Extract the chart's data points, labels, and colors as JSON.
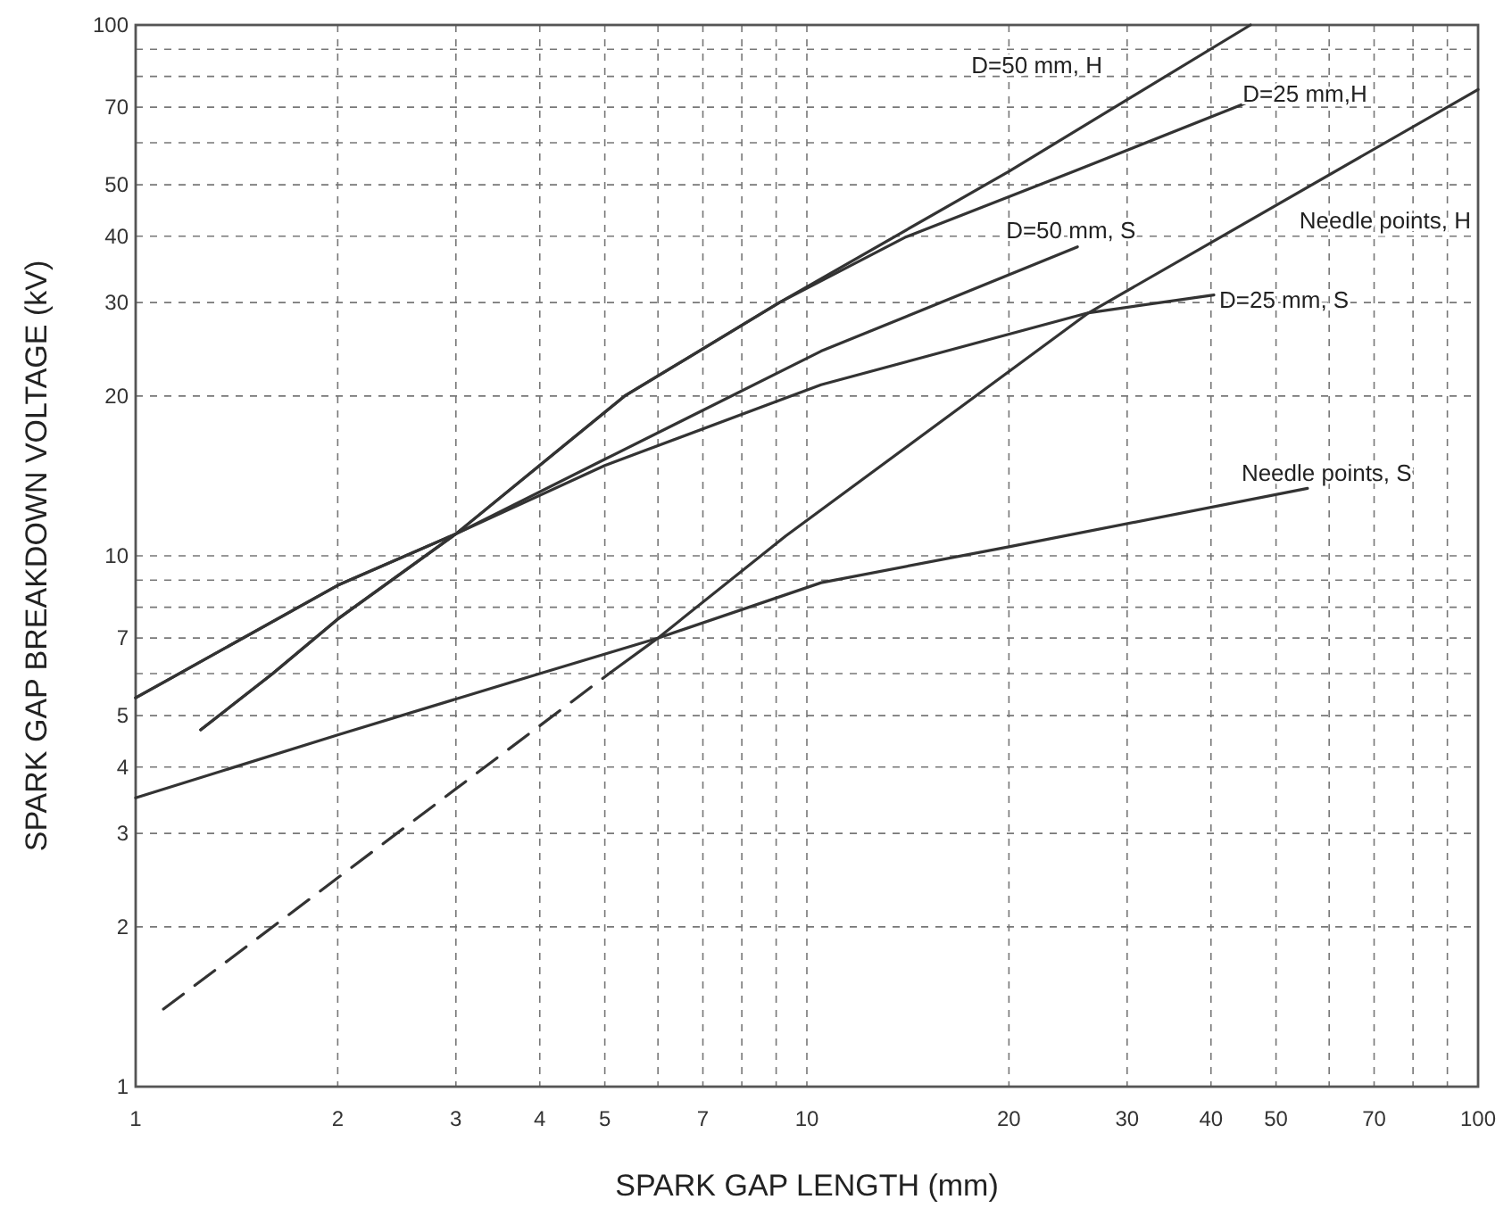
{
  "chart_data": {
    "type": "line",
    "xlabel": "SPARK GAP LENGTH (mm)",
    "ylabel": "SPARK GAP BREAKDOWN VOLTAGE (kV)",
    "log": "xy",
    "grid": true,
    "marker": "none",
    "xlim": [
      1,
      100
    ],
    "ylim": [
      1,
      100
    ],
    "xticks": [
      1,
      2,
      3,
      4,
      5,
      {
        "value": 6,
        "label": null
      },
      7,
      {
        "value": 8,
        "label": null
      },
      {
        "value": 9,
        "label": null
      },
      10,
      20,
      30,
      40,
      50,
      {
        "value": 60,
        "label": null
      },
      70,
      {
        "value": 80,
        "label": null
      },
      {
        "value": 90,
        "label": null
      },
      100
    ],
    "yticks": [
      1,
      2,
      3,
      4,
      5,
      {
        "value": 6,
        "label": null
      },
      7,
      {
        "value": 8,
        "label": null
      },
      {
        "value": 9,
        "label": null
      },
      10,
      20,
      30,
      40,
      50,
      {
        "value": 60,
        "label": null
      },
      70,
      {
        "value": 80,
        "label": null
      },
      {
        "value": 90,
        "label": null
      },
      100
    ],
    "series": [
      {
        "name": "D=50 mm, H",
        "color": "#333333",
        "x": [
          1.25,
          1.6,
          2,
          3,
          5.35,
          9.1,
          20,
          45.8
        ],
        "values": [
          4.7,
          6,
          7.6,
          11,
          20,
          30,
          53,
          100
        ]
      },
      {
        "name": "D=25 mm,H",
        "color": "#333333",
        "x": [
          1.25,
          1.6,
          2,
          3,
          5.35,
          9.1,
          14,
          25,
          48.6
        ],
        "values": [
          4.7,
          6,
          7.6,
          11,
          20,
          30,
          39.8,
          53,
          74
        ]
      },
      {
        "name": "D=50 mm, S",
        "color": "#333333",
        "x": [
          1,
          2,
          3,
          5,
          10.5,
          25.3
        ],
        "values": [
          5.4,
          8.8,
          11,
          15.2,
          24.3,
          38.2
        ]
      },
      {
        "name": "D=25 mm, S",
        "color": "#333333",
        "x": [
          1,
          2,
          3,
          5,
          10.5,
          26.3,
          40.4
        ],
        "values": [
          5.4,
          8.8,
          11,
          14.8,
          21,
          28.7,
          31
        ]
      },
      {
        "name": "Needle points, H",
        "color": "#333333",
        "x": [
          5.1,
          6,
          9.3,
          26.3,
          100
        ],
        "values": [
          6.03,
          7,
          10.9,
          28.7,
          75.6
        ]
      },
      {
        "color": "#333333",
        "line_style": "dashed",
        "x": [
          1.1,
          5.1
        ],
        "values": [
          1.4,
          6.03
        ]
      },
      {
        "name": "Needle points, S",
        "color": "#333333",
        "x": [
          1,
          2,
          4,
          6,
          10.5,
          20,
          55.7
        ],
        "values": [
          3.5,
          4.6,
          6,
          7,
          8.9,
          10.4,
          13.4
        ]
      }
    ]
  }
}
